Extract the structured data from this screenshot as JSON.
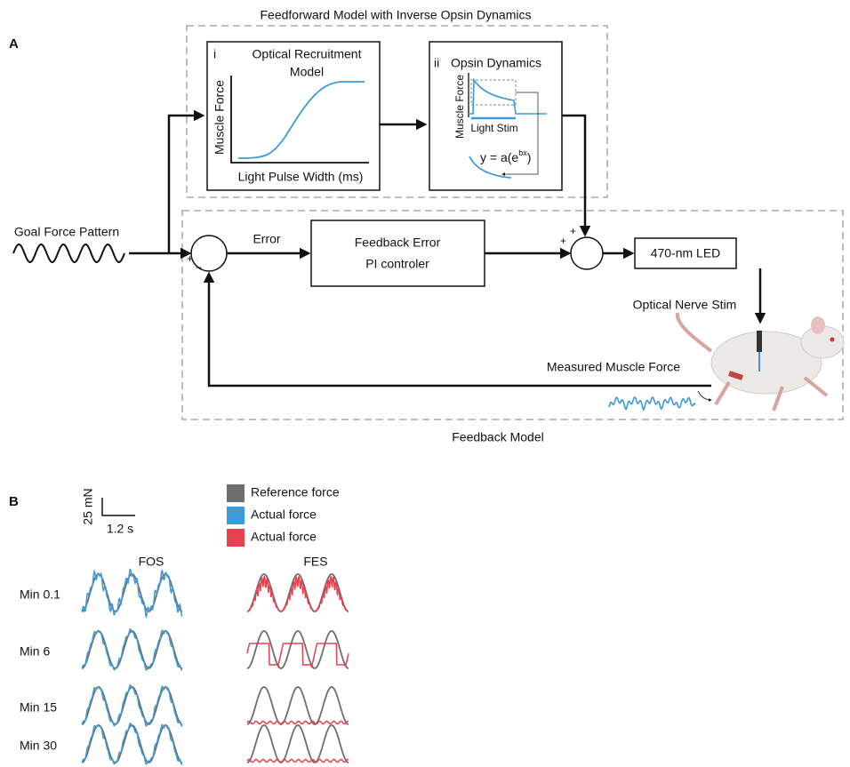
{
  "panel_a": {
    "label": "A",
    "feedforward_title": "Feedforward Model with Inverse Opsin Dynamics",
    "box_i": {
      "number": "i",
      "title_line1": "Optical Recruitment",
      "title_line2": "Model",
      "y_label": "Muscle Force",
      "x_label": "Light Pulse Width (ms)"
    },
    "box_ii": {
      "number": "ii",
      "title": "Opsin Dynamics",
      "y_label": "Muscle Force",
      "x_label": "Light Stim",
      "equation": "y = a(e",
      "exponent": "bx",
      "equation_end": ")"
    },
    "goal": "Goal Force Pattern",
    "error": "Error",
    "controller": [
      "Feedback Error",
      "PI controler"
    ],
    "signs": [
      "+",
      "−",
      "+",
      "+"
    ],
    "led": "470-nm LED",
    "stim": "Optical Nerve Stim",
    "measured": "Measured Muscle Force",
    "feedback_title": "Feedback Model"
  },
  "panel_b": {
    "label": "B",
    "scale_y": "25 mN",
    "scale_x": "1.2 s",
    "legend": [
      {
        "name": "Reference force",
        "color": "#6e6e6e"
      },
      {
        "name": "Actual force",
        "color": "#3d9ad8"
      },
      {
        "name": "Actual force",
        "color": "#e8404f"
      }
    ],
    "columns": [
      "FOS",
      "FES"
    ],
    "rows": [
      "Min 0.1",
      "Min 6",
      "Min 15",
      "Min 30"
    ]
  }
}
